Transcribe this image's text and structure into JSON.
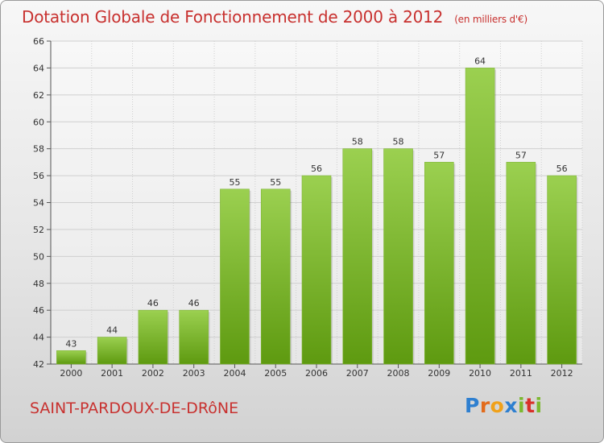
{
  "header": {
    "title": "Dotation Globale de Fonctionnement de 2000 à 2012",
    "subtitle": "(en milliers d'€)"
  },
  "footer": {
    "commune": "SAINT-PARDOUX-DE-DRôNE",
    "logo_text": "Proxiti"
  },
  "colors": {
    "title": "#c8312f",
    "bar_top": "#9bd050",
    "bar_bottom": "#5e9a10",
    "grid": "#cfcfcf"
  },
  "chart_data": {
    "type": "bar",
    "title": "Dotation Globale de Fonctionnement de 2000 à 2012",
    "subtitle": "(en milliers d'€)",
    "xlabel": "",
    "ylabel": "",
    "categories": [
      "2000",
      "2001",
      "2002",
      "2003",
      "2004",
      "2005",
      "2006",
      "2007",
      "2008",
      "2009",
      "2010",
      "2011",
      "2012"
    ],
    "values": [
      43,
      44,
      46,
      46,
      55,
      55,
      56,
      58,
      58,
      57,
      64,
      57,
      56
    ],
    "ylim": [
      42,
      66
    ],
    "yticks": [
      42,
      44,
      46,
      48,
      50,
      52,
      54,
      56,
      58,
      60,
      62,
      64,
      66
    ],
    "grid": true,
    "legend": "none"
  }
}
